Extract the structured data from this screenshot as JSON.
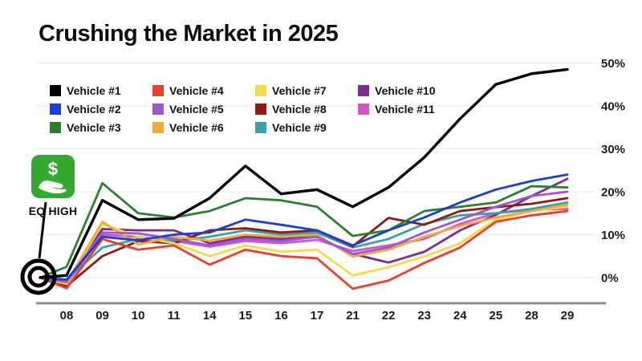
{
  "header": {
    "title": "Crushing the Market in 2025"
  },
  "annotations": {
    "eq_high_label": "EQ HIGH",
    "eq_icon": "dollar-hand-icon",
    "eq_icon_color": "#35a832",
    "callout_marker": "double-circle on first data point"
  },
  "colors": {
    "background": "#ffffff",
    "axis_line": "#8c8c8c",
    "gridline": "#e9e9e9",
    "text": "#111111"
  },
  "chart_data": {
    "type": "line",
    "title": "Crushing the Market in 2025",
    "categories": [
      "",
      "08",
      "09",
      "10",
      "11",
      "14",
      "15",
      "16",
      "17",
      "21",
      "22",
      "23",
      "24",
      "25",
      "28",
      "29"
    ],
    "series": [
      {
        "name": "Vehicle #1",
        "color": "#000000",
        "values": [
          0,
          0.5,
          18,
          13.5,
          13.8,
          18.5,
          26,
          19.5,
          20.5,
          16.5,
          21,
          28,
          37,
          45,
          47.5,
          48.5
        ]
      },
      {
        "name": "Vehicle #2",
        "color": "#1c3fd0",
        "values": [
          0,
          -0.5,
          9.5,
          8.7,
          10,
          10.5,
          13.5,
          12.3,
          11,
          7.5,
          11,
          14,
          17.5,
          20.5,
          22.5,
          24
        ]
      },
      {
        "name": "Vehicle #3",
        "color": "#2e7d32",
        "values": [
          0,
          2.5,
          22,
          15,
          14,
          15.5,
          18.5,
          18,
          16.5,
          9.7,
          11,
          15.5,
          16.5,
          17.5,
          21.3,
          21
        ]
      },
      {
        "name": "Vehicle #4",
        "color": "#e8402d",
        "values": [
          0,
          -2.5,
          9,
          6.5,
          7.5,
          3,
          6.5,
          5,
          4.5,
          -2.6,
          -0.7,
          3.4,
          7,
          13,
          14.5,
          15.5
        ]
      },
      {
        "name": "Vehicle #5",
        "color": "#9b59d0",
        "values": [
          0,
          -1,
          10.5,
          10.3,
          9,
          7.5,
          9,
          8.5,
          9.5,
          5.5,
          7,
          10.5,
          13.5,
          16.5,
          19,
          20
        ]
      },
      {
        "name": "Vehicle #6",
        "color": "#f2a93b",
        "values": [
          0,
          -1.2,
          13,
          7.7,
          9.5,
          8.6,
          10,
          9.5,
          10,
          4.9,
          6.5,
          9.5,
          12,
          14,
          15.5,
          17
        ]
      },
      {
        "name": "Vehicle #7",
        "color": "#f5d94e",
        "values": [
          0,
          -1.5,
          12.5,
          9.5,
          8,
          5,
          7.5,
          6,
          6.5,
          0.5,
          2.4,
          4.9,
          8,
          13.5,
          15.5,
          16.5
        ]
      },
      {
        "name": "Vehicle #8",
        "color": "#8e1b12",
        "values": [
          0,
          -2,
          5,
          8.5,
          8,
          11,
          11.5,
          10.5,
          11,
          7.3,
          13.9,
          12.3,
          15.5,
          16.4,
          17.2,
          18.5
        ]
      },
      {
        "name": "Vehicle #9",
        "color": "#3d9fa5",
        "values": [
          0,
          -0.5,
          7,
          9,
          8.5,
          9.5,
          11,
          10,
          10.5,
          7,
          9,
          12.5,
          14.5,
          15,
          16,
          17.5
        ]
      },
      {
        "name": "Vehicle #10",
        "color": "#7c2d8e",
        "values": [
          0,
          -0.8,
          11.3,
          11,
          11,
          8,
          9.5,
          9,
          9.5,
          5.5,
          3.5,
          6,
          11,
          14.6,
          19,
          23
        ]
      },
      {
        "name": "Vehicle #11",
        "color": "#d456c4",
        "values": [
          0,
          -1.5,
          10,
          9.5,
          8.5,
          7.2,
          8.5,
          8,
          8.8,
          6.2,
          7.5,
          9,
          12.5,
          15,
          15.8,
          16
        ]
      }
    ],
    "y_ticks": [
      0,
      10,
      20,
      30,
      40,
      50
    ],
    "y_tick_suffix": "%",
    "ylim": [
      -5,
      52
    ],
    "grid": true,
    "legend_position": "top-left",
    "y_axis_side": "right",
    "xlabel": "",
    "ylabel": ""
  }
}
